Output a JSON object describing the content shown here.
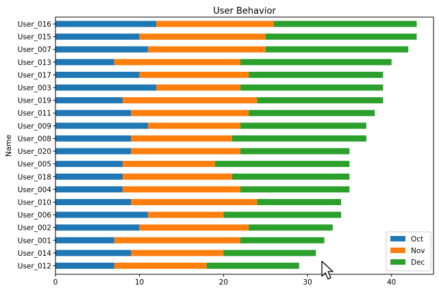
{
  "chart_data": {
    "type": "bar",
    "orientation": "horizontal",
    "stacked": true,
    "title": "User Behavior",
    "xlabel": "",
    "ylabel": "Name",
    "xlim": [
      0,
      45
    ],
    "xticks": [
      0,
      10,
      20,
      30,
      40
    ],
    "grid": false,
    "legend_position": "lower right",
    "categories": [
      "User_016",
      "User_015",
      "User_007",
      "User_013",
      "User_017",
      "User_003",
      "User_019",
      "User_011",
      "User_009",
      "User_008",
      "User_020",
      "User_005",
      "User_018",
      "User_004",
      "User_010",
      "User_006",
      "User_002",
      "User_001",
      "User_014",
      "User_012"
    ],
    "series": [
      {
        "name": "Oct",
        "color": "#1f77b4",
        "values": [
          12,
          10,
          11,
          7,
          10,
          12,
          8,
          9,
          11,
          9,
          9,
          8,
          8,
          8,
          9,
          11,
          10,
          7,
          9,
          7
        ]
      },
      {
        "name": "Nov",
        "color": "#ff7f0e",
        "values": [
          14,
          15,
          14,
          15,
          13,
          10,
          16,
          14,
          11,
          12,
          13,
          11,
          13,
          14,
          15,
          9,
          13,
          15,
          11,
          11
        ]
      },
      {
        "name": "Dec",
        "color": "#2ca02c",
        "values": [
          17,
          18,
          17,
          18,
          16,
          17,
          15,
          15,
          15,
          16,
          13,
          16,
          14,
          13,
          10,
          14,
          10,
          10,
          11,
          11
        ]
      }
    ]
  },
  "icons": {
    "cursor": "mouse-pointer-icon"
  }
}
